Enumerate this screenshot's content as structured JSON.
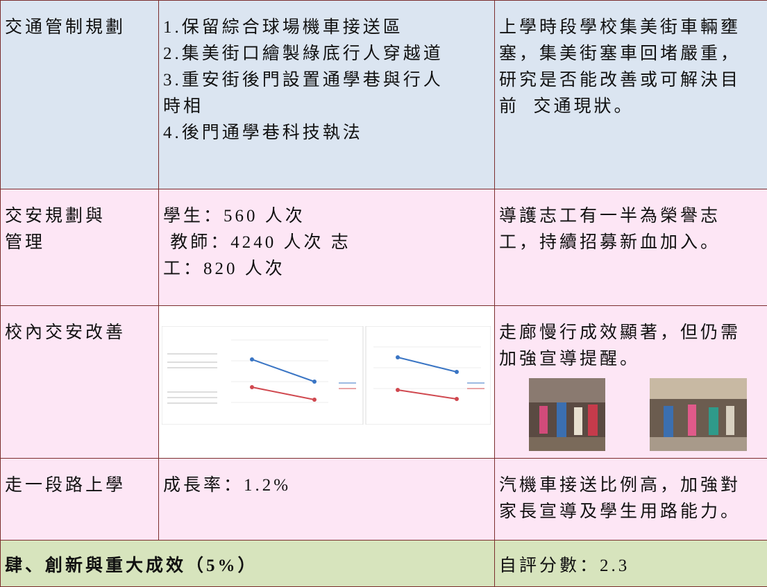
{
  "table": {
    "rows": [
      [
        [
          "交通管制規劃"
        ],
        [
          "1.保留綜合球場機車接送區",
          "2.集美街口繪製綠底行人穿越道",
          "3.重安街後門設置通學巷與行人",
          "時相",
          "4.後門通學巷科技執法"
        ],
        [
          "上學時段學校集美街車輛壅",
          "塞，集美街塞車回堵嚴重，",
          "研究是否能改善或可解決目",
          "前  交通現狀。"
        ]
      ],
      [
        [
          "交安規劃與",
          "管理"
        ],
        [
          "學生：560 人次",
          " 教師：4240 人次 志",
          "工：820 人次"
        ],
        [
          "導護志工有一半為榮譽志",
          "工，持續招募新血加入。"
        ]
      ],
      [
        [
          "校內交安改善"
        ],
        [
          "走廊慢行成效顯著，但仍需",
          "加強宣導提醒。"
        ]
      ],
      [
        [
          "走一段路上學"
        ],
        [
          "成長率：1.2%"
        ],
        [
          "汽機車接送比例高，加強對",
          "家長宣導及學生用路能力。"
        ]
      ],
      [
        [
          "肆、創新與重大成效（5%）"
        ],
        [
          "自評分數：2.3"
        ]
      ]
    ]
  }
}
